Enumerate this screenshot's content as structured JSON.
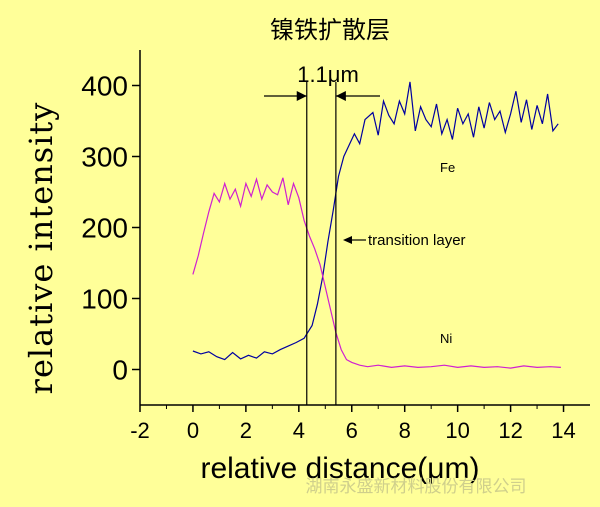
{
  "chart_data": {
    "type": "line",
    "title": "镍铁扩散层",
    "xlabel": "relative distance(μm)",
    "ylabel": "relative intensity",
    "xlim": [
      -2,
      15
    ],
    "ylim": [
      -50,
      450
    ],
    "x_ticks": [
      -2,
      0,
      2,
      4,
      6,
      8,
      10,
      12,
      14
    ],
    "y_ticks": [
      0,
      100,
      200,
      300,
      400
    ],
    "series": [
      {
        "name": "Fe",
        "color": "#0000a0",
        "x": [
          0,
          0.3,
          0.6,
          0.9,
          1.2,
          1.5,
          1.8,
          2.1,
          2.4,
          2.7,
          3.0,
          3.3,
          3.6,
          3.9,
          4.2,
          4.5,
          4.7,
          4.9,
          5.1,
          5.3,
          5.5,
          5.7,
          5.9,
          6.1,
          6.3,
          6.5,
          6.8,
          7.0,
          7.2,
          7.4,
          7.6,
          7.8,
          8.0,
          8.2,
          8.4,
          8.6,
          8.8,
          9.0,
          9.2,
          9.4,
          9.6,
          9.8,
          10.0,
          10.2,
          10.4,
          10.6,
          10.8,
          11.0,
          11.2,
          11.4,
          11.6,
          11.8,
          12.0,
          12.2,
          12.4,
          12.6,
          12.8,
          13.0,
          13.2,
          13.4,
          13.6,
          13.8
        ],
        "values": [
          26,
          22,
          25,
          18,
          14,
          24,
          15,
          20,
          16,
          25,
          22,
          28,
          33,
          38,
          44,
          62,
          92,
          130,
          180,
          224,
          272,
          300,
          316,
          332,
          318,
          352,
          362,
          330,
          378,
          358,
          346,
          378,
          360,
          405,
          336,
          370,
          352,
          342,
          374,
          332,
          352,
          324,
          368,
          346,
          360,
          327,
          370,
          340,
          376,
          352,
          364,
          334,
          360,
          392,
          348,
          380,
          338,
          372,
          346,
          388,
          336,
          346
        ]
      },
      {
        "name": "Ni",
        "color": "#d020d0",
        "x": [
          0,
          0.2,
          0.4,
          0.6,
          0.8,
          1.0,
          1.2,
          1.4,
          1.6,
          1.8,
          2.0,
          2.2,
          2.4,
          2.6,
          2.8,
          3.0,
          3.2,
          3.4,
          3.6,
          3.8,
          4.0,
          4.2,
          4.4,
          4.6,
          4.8,
          5.0,
          5.2,
          5.4,
          5.6,
          5.8,
          6.0,
          6.3,
          6.6,
          7.0,
          7.5,
          8.0,
          8.5,
          9.0,
          9.5,
          10.0,
          10.5,
          11.0,
          11.5,
          12.0,
          12.5,
          13.0,
          13.5,
          13.9
        ],
        "values": [
          134,
          160,
          192,
          222,
          248,
          236,
          262,
          240,
          254,
          230,
          262,
          244,
          268,
          240,
          260,
          250,
          246,
          270,
          232,
          262,
          242,
          210,
          188,
          170,
          148,
          116,
          84,
          52,
          28,
          14,
          10,
          6,
          4,
          6,
          3,
          5,
          3,
          4,
          6,
          3,
          5,
          3,
          4,
          2,
          5,
          3,
          4,
          3
        ]
      }
    ],
    "annotations": {
      "width_label": "1.1μm",
      "transition_label": "transition layer",
      "vline_x": [
        4.3,
        5.4
      ],
      "fe_label": "Fe",
      "ni_label": "Ni"
    },
    "watermark": "湖南永盛新材料股份有限公司"
  }
}
